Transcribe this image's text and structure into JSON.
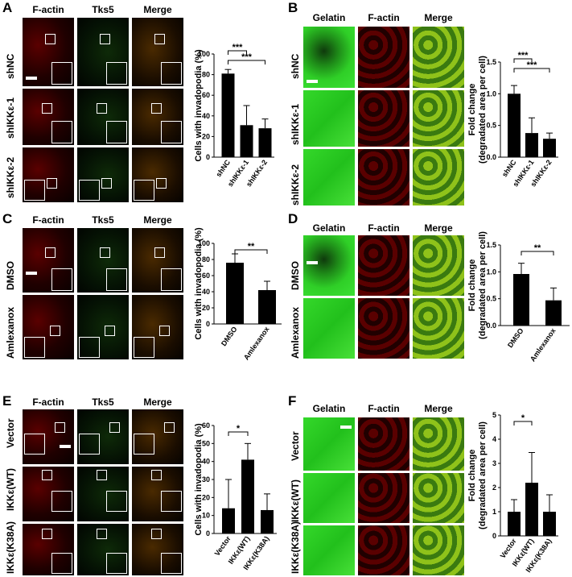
{
  "panels": {
    "A": {
      "letter": "A",
      "cols": [
        "F-actin",
        "Tks5",
        "Merge"
      ],
      "rows": [
        "shNC",
        "shIKKε-1",
        "shIKKε-2"
      ]
    },
    "B": {
      "letter": "B",
      "cols": [
        "Gelatin",
        "F-actin",
        "Merge"
      ],
      "rows": [
        "shNC",
        "shIKKε-1",
        "shIKKε-2"
      ]
    },
    "C": {
      "letter": "C",
      "cols": [
        "F-actin",
        "Tks5",
        "Merge"
      ],
      "rows": [
        "DMSO",
        "Amlexanox"
      ]
    },
    "D": {
      "letter": "D",
      "cols": [
        "Gelatin",
        "F-actin",
        "Merge"
      ],
      "rows": [
        "DMSO",
        "Amlexanox"
      ]
    },
    "E": {
      "letter": "E",
      "cols": [
        "F-actin",
        "Tks5",
        "Merge"
      ],
      "rows": [
        "Vector",
        "IKKε(WT)",
        "IKKε(K38A)"
      ]
    },
    "F": {
      "letter": "F",
      "cols": [
        "Gelatin",
        "F-actin",
        "Merge"
      ],
      "rows": [
        "Vector",
        "IKKε(WT)",
        "IKKε(K38A)"
      ]
    }
  },
  "chart_data": [
    {
      "id": "A",
      "type": "bar",
      "categories": [
        "shNC",
        "shIKKε-1",
        "shIKKε-2"
      ],
      "values": [
        81,
        31,
        28
      ],
      "errors": [
        4,
        19,
        9
      ],
      "ylabel": "Cells with invadopodia (%)",
      "yticks": [
        "0",
        "20",
        "40",
        "60",
        "80",
        "100"
      ],
      "ylim": [
        0,
        100
      ],
      "sig": [
        {
          "from": 0,
          "to": 1,
          "label": "***"
        },
        {
          "from": 0,
          "to": 2,
          "label": "***"
        }
      ]
    },
    {
      "id": "B",
      "type": "bar",
      "categories": [
        "shNC",
        "shIKKε-1",
        "shIKKε-2"
      ],
      "values": [
        1.0,
        0.38,
        0.29
      ],
      "errors": [
        0.13,
        0.24,
        0.09
      ],
      "ylabel": "Fold change",
      "ylabel2": "(degradated area per cell)",
      "yticks": [
        "0.0",
        "0.5",
        "1.0",
        "1.5"
      ],
      "ylim": [
        0,
        1.5
      ],
      "sig": [
        {
          "from": 0,
          "to": 1,
          "label": "***"
        },
        {
          "from": 0,
          "to": 2,
          "label": "***"
        }
      ]
    },
    {
      "id": "C",
      "type": "bar",
      "categories": [
        "DMSO",
        "Amlexanox"
      ],
      "values": [
        76,
        42
      ],
      "errors": [
        11,
        11
      ],
      "ylabel": "Cells with invadopodia (%)",
      "yticks": [
        "0",
        "20",
        "40",
        "60",
        "80",
        "100"
      ],
      "ylim": [
        0,
        100
      ],
      "sig": [
        {
          "from": 0,
          "to": 1,
          "label": "**"
        }
      ]
    },
    {
      "id": "D",
      "type": "bar",
      "categories": [
        "DMSO",
        "Amlexanox"
      ],
      "values": [
        0.96,
        0.47
      ],
      "errors": [
        0.2,
        0.23
      ],
      "ylabel": "Fold change",
      "ylabel2": "(degradated area per cell)",
      "yticks": [
        "0.0",
        "0.5",
        "1.0",
        "1.5"
      ],
      "ylim": [
        0,
        1.5
      ],
      "sig": [
        {
          "from": 0,
          "to": 1,
          "label": "**"
        }
      ]
    },
    {
      "id": "E",
      "type": "bar",
      "categories": [
        "Vector",
        "IKKε(WT)",
        "IKKε(K38A)"
      ],
      "values": [
        14,
        41,
        13
      ],
      "errors": [
        16,
        9,
        9
      ],
      "ylabel": "Cells with invadopodia (%)",
      "yticks": [
        "0",
        "10",
        "20",
        "30",
        "40",
        "50",
        "60"
      ],
      "ylim": [
        0,
        60
      ],
      "sig": [
        {
          "from": 0,
          "to": 1,
          "label": "*"
        }
      ]
    },
    {
      "id": "F",
      "type": "bar",
      "categories": [
        "Vector",
        "IKKε(WT)",
        "IKKε(K38A)"
      ],
      "values": [
        1.0,
        2.2,
        1.0
      ],
      "errors": [
        0.5,
        1.25,
        0.7
      ],
      "ylabel": "Fold change",
      "ylabel2": "(degradated area per cell)",
      "yticks": [
        "0",
        "1",
        "2",
        "3",
        "4",
        "5"
      ],
      "ylim": [
        0,
        5
      ],
      "sig": [
        {
          "from": 0,
          "to": 1,
          "label": "*"
        }
      ]
    }
  ]
}
